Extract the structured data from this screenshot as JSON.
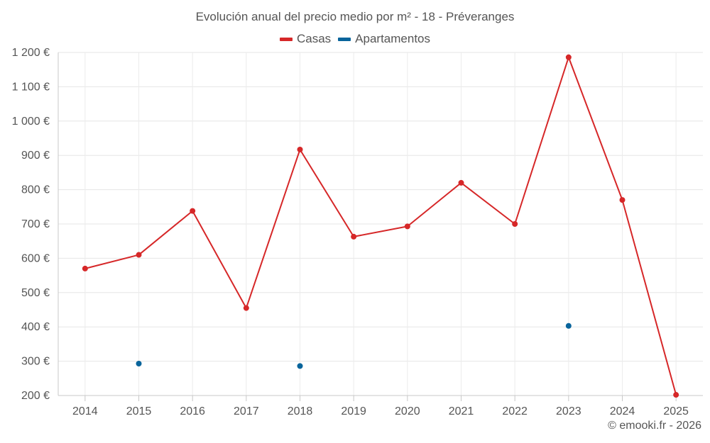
{
  "chart_data": {
    "type": "line",
    "title": "Evolución anual del precio medio por m² - 18 - Préveranges",
    "categories": [
      "2014",
      "2015",
      "2016",
      "2017",
      "2018",
      "2019",
      "2020",
      "2021",
      "2022",
      "2023",
      "2024",
      "2025"
    ],
    "series": [
      {
        "name": "Casas",
        "color": "#d62728",
        "values": [
          570,
          610,
          738,
          455,
          917,
          663,
          693,
          820,
          700,
          1186,
          770,
          202
        ]
      },
      {
        "name": "Apartamentos",
        "color": "#08649b",
        "values": [
          null,
          293,
          null,
          null,
          286,
          null,
          null,
          null,
          null,
          403,
          null,
          null
        ]
      }
    ],
    "ylim": [
      200,
      1200
    ],
    "yticks": [
      200,
      300,
      400,
      500,
      600,
      700,
      800,
      900,
      1000,
      1100,
      1200
    ],
    "ytick_labels": [
      "200 €",
      "300 €",
      "400 €",
      "500 €",
      "600 €",
      "700 €",
      "800 €",
      "900 €",
      "1 000 €",
      "1 100 €",
      "1 200 €"
    ],
    "grid": true,
    "legend_position": "top-center",
    "xlabel": "",
    "ylabel": ""
  },
  "credit": "© emooki.fr - 2026"
}
